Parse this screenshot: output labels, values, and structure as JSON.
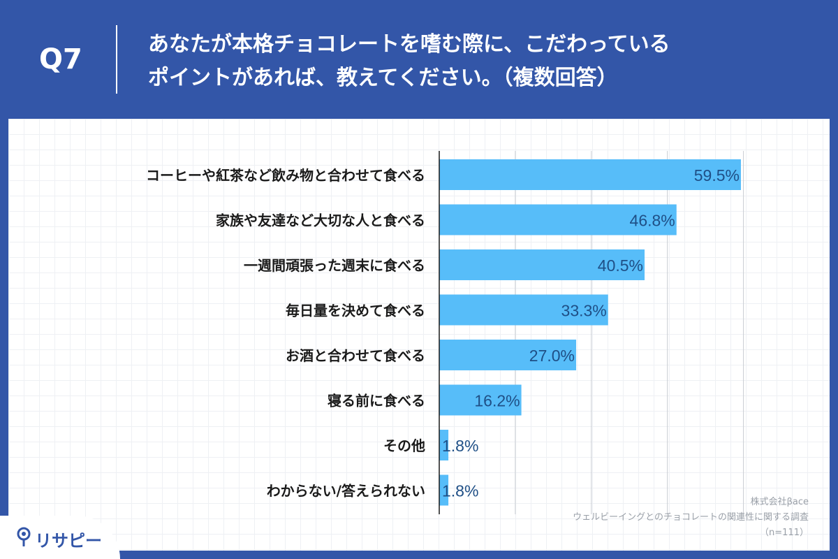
{
  "header": {
    "q_label": "Q7",
    "title_line1": "あなたが本格チョコレートを嗜む際に、こだわっている",
    "title_line2": "ポイントがあれば、教えてください。（複数回答）"
  },
  "colors": {
    "background": "#3356a8",
    "bar": "#57bdf9",
    "value_label": "#1f4f86",
    "category_label": "#1a1a1a",
    "gridline": "#c8ccd2"
  },
  "chart_data": {
    "type": "bar",
    "orientation": "horizontal",
    "categories": [
      "コーヒーや紅茶など飲み物と合わせて食べる",
      "家族や友達など大切な人と食べる",
      "一週間頑張った週末に食べる",
      "毎日量を決めて食べる",
      "お酒と合わせて食べる",
      "寝る前に食べる",
      "その他",
      "わからない/答えられない"
    ],
    "values": [
      59.5,
      46.8,
      40.5,
      33.3,
      27.0,
      16.2,
      1.8,
      1.8
    ],
    "value_labels": [
      "59.5%",
      "46.8%",
      "40.5%",
      "33.3%",
      "27.0%",
      "16.2%",
      "1.8%",
      "1.8%"
    ],
    "xlim": [
      0,
      60
    ],
    "gridlines_at": [
      15,
      30,
      45,
      60
    ],
    "title": "",
    "xlabel": "",
    "ylabel": ""
  },
  "source": {
    "company": "株式会社βace",
    "survey": "ウェルビーイングとのチョコレートの関連性に関する調査",
    "sample": "（n=111）"
  },
  "brand": {
    "logo_text": "リサピー",
    "logo_icon": "pin-icon"
  }
}
